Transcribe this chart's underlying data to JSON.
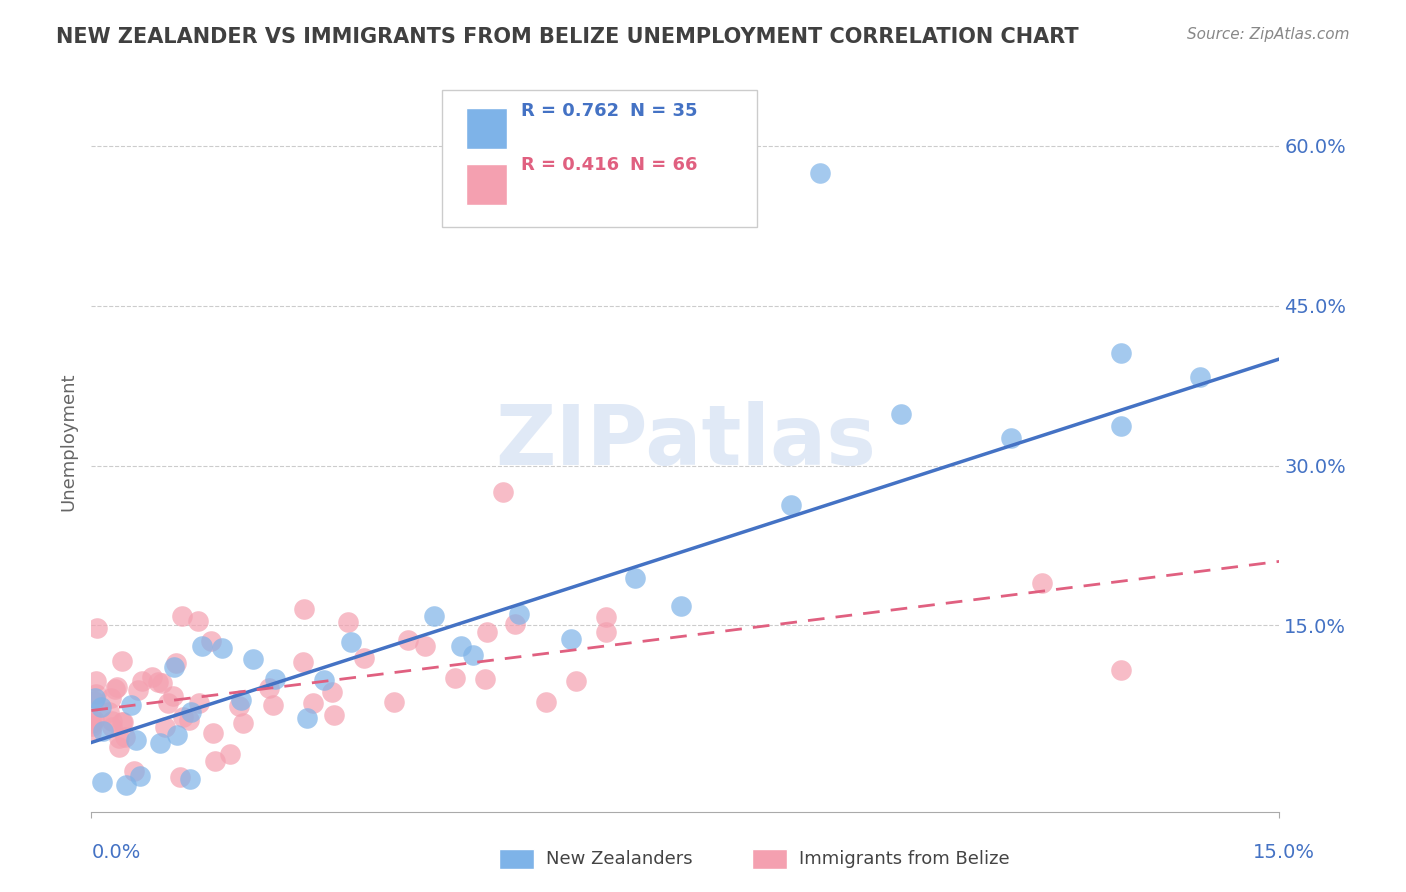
{
  "title": "NEW ZEALANDER VS IMMIGRANTS FROM BELIZE UNEMPLOYMENT CORRELATION CHART",
  "source": "Source: ZipAtlas.com",
  "ylabel": "Unemployment",
  "ytick_labels": [
    "15.0%",
    "30.0%",
    "45.0%",
    "60.0%"
  ],
  "ytick_values": [
    0.15,
    0.3,
    0.45,
    0.6
  ],
  "xmin": 0.0,
  "xmax": 0.15,
  "ymin": -0.025,
  "ymax": 0.67,
  "watermark": "ZIPatlas",
  "legend_r1": "R = 0.762",
  "legend_n1": "N = 35",
  "legend_r2": "R = 0.416",
  "legend_n2": "N = 66",
  "legend_label1": "New Zealanders",
  "legend_label2": "Immigrants from Belize",
  "blue_color": "#7EB3E8",
  "pink_color": "#F4A0B0",
  "blue_line_color": "#4472C4",
  "pink_line_color": "#E06080",
  "title_color": "#404040",
  "axis_label_color": "#4472C4",
  "blue_trendline_x": [
    0.0,
    0.15
  ],
  "blue_trendline_y": [
    0.04,
    0.4
  ],
  "pink_trendline_x": [
    0.0,
    0.15
  ],
  "pink_trendline_y": [
    0.07,
    0.21
  ],
  "background_color": "#FFFFFF",
  "grid_color": "#CCCCCC"
}
